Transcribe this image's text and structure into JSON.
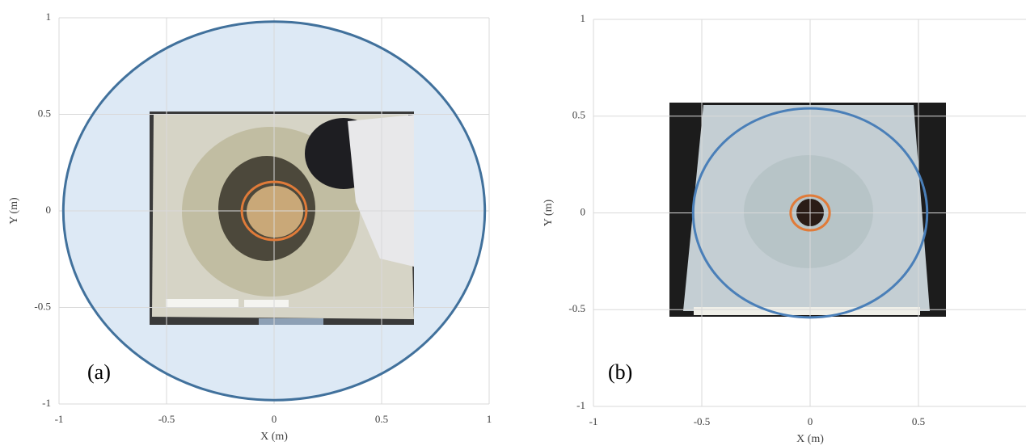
{
  "chart_data": [
    {
      "type": "circle",
      "label": "(a)",
      "xlabel": "X (m)",
      "ylabel": "Y (m)",
      "xlim": [
        -1,
        1
      ],
      "ylim": [
        -1,
        1
      ],
      "xticks": [
        -1,
        -0.5,
        0,
        0.5,
        1
      ],
      "yticks": [
        -1,
        -0.5,
        0,
        0.5,
        1
      ],
      "grid": true,
      "circles": [
        {
          "color": "#41719c",
          "fill": "#dde9f5",
          "center": [
            0,
            0
          ],
          "radius": 0.98
        },
        {
          "color": "#e07b39",
          "center": [
            0,
            0
          ],
          "radius": 0.15
        }
      ]
    },
    {
      "type": "circle",
      "label": "(b)",
      "xlabel": "X (m)",
      "ylabel": "Y (m)",
      "xlim": [
        -1,
        1
      ],
      "ylim": [
        -1,
        1
      ],
      "xticks": [
        -1,
        -0.5,
        0,
        0.5
      ],
      "yticks": [
        -1,
        -0.5,
        0,
        0.5,
        1
      ],
      "grid": true,
      "circles": [
        {
          "color": "#4a7fb8",
          "center": [
            0,
            0
          ],
          "radius": 0.54
        },
        {
          "color": "#e07b39",
          "center": [
            0,
            0
          ],
          "radius": 0.09
        }
      ]
    }
  ]
}
